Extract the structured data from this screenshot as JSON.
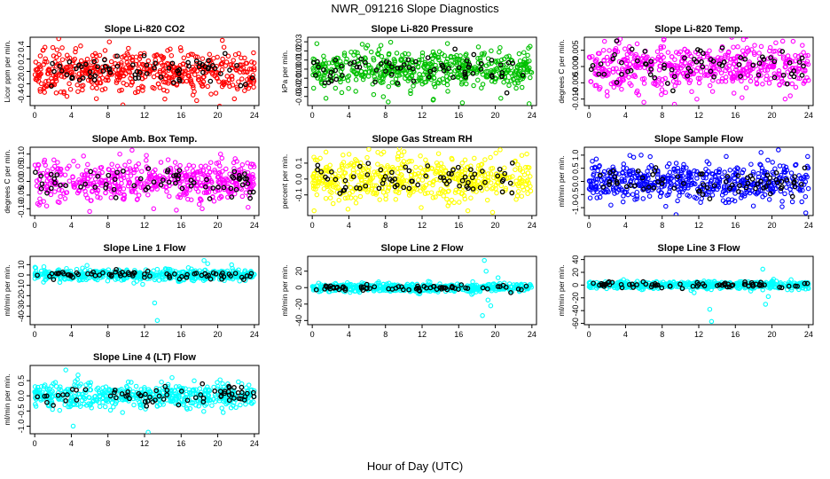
{
  "page": {
    "title": "NWR_091216  Slope Diagnostics",
    "xlabel": "Hour of Day (UTC)"
  },
  "chart_data": [
    {
      "type": "scatter",
      "title": "Slope Li-820 CO2",
      "ylabel": "Licor ppm per min.",
      "ylim": [
        -0.55,
        0.55
      ],
      "yticks": [
        -0.4,
        -0.2,
        0.0,
        0.2,
        0.4
      ],
      "ytick_labels": [
        "-0.4",
        "-0.2",
        "0.0",
        "0.2",
        "0.4"
      ],
      "xlim": [
        -0.5,
        24.5
      ],
      "xticks": [
        0,
        4,
        8,
        12,
        16,
        20,
        24
      ],
      "color": "#ff0000",
      "spread": 0.16,
      "outliers": [
        [
          1.8,
          -0.22
        ],
        [
          3.0,
          0.38
        ],
        [
          9.5,
          -0.3
        ],
        [
          11.7,
          -0.24
        ],
        [
          14.8,
          0.36
        ],
        [
          17.3,
          -0.38
        ],
        [
          17.7,
          -0.47
        ],
        [
          19.8,
          -0.35
        ],
        [
          20.5,
          0.5
        ],
        [
          21.3,
          -0.24
        ]
      ]
    },
    {
      "type": "scatter",
      "title": "Slope Li-820 Pressure",
      "ylabel": "kPa per min.",
      "ylim": [
        -0.04,
        0.035
      ],
      "yticks": [
        -0.03,
        -0.02,
        -0.01,
        0.0,
        0.01,
        0.02,
        0.03
      ],
      "ytick_labels": [
        "-0.03",
        "-0.02",
        "-0.01",
        "0.00",
        "0.01",
        "0.02",
        "0.03"
      ],
      "xlim": [
        -0.5,
        24.5
      ],
      "xticks": [
        0,
        4,
        8,
        12,
        16,
        20,
        24
      ],
      "color": "#00c000",
      "spread": 0.011,
      "outliers": [
        [
          0.5,
          0.028
        ],
        [
          1.5,
          -0.032
        ],
        [
          7.5,
          0.026
        ],
        [
          8.3,
          -0.036
        ],
        [
          13.2,
          -0.034
        ],
        [
          16.4,
          -0.037
        ],
        [
          20.6,
          -0.032
        ],
        [
          23.7,
          -0.038
        ],
        [
          23.8,
          0.025
        ]
      ]
    },
    {
      "type": "scatter",
      "title": "Slope Li-820 Temp.",
      "ylabel": "degrees C per min.",
      "ylim": [
        -0.012,
        0.009
      ],
      "yticks": [
        -0.01,
        -0.005,
        0.0,
        0.005
      ],
      "ytick_labels": [
        "-0.010",
        "-0.005",
        "0.000",
        "0.005"
      ],
      "xlim": [
        -0.5,
        24.5
      ],
      "xticks": [
        0,
        4,
        8,
        12,
        16,
        20,
        24
      ],
      "color": "#ff00ff",
      "spread": 0.0035,
      "outliers": [
        [
          2.0,
          -0.009
        ],
        [
          3.1,
          0.008
        ],
        [
          6.0,
          -0.011
        ],
        [
          8.2,
          0.0085
        ],
        [
          11.8,
          -0.01
        ],
        [
          15.6,
          0.009
        ],
        [
          22.0,
          -0.009
        ]
      ]
    },
    {
      "type": "scatter",
      "title": "Slope Amb. Box Temp.",
      "ylabel": "degrees C per min.",
      "ylim": [
        -0.125,
        0.125
      ],
      "yticks": [
        -0.1,
        -0.05,
        0.0,
        0.05,
        0.1
      ],
      "ytick_labels": [
        "-0.10",
        "-0.05",
        "0.00",
        "0.05",
        "0.10"
      ],
      "xlim": [
        -0.5,
        24.5
      ],
      "xticks": [
        0,
        4,
        8,
        12,
        16,
        20,
        24
      ],
      "color": "#ff00ff",
      "spread": 0.035,
      "outliers": [
        [
          1.3,
          -0.09
        ],
        [
          6.0,
          -0.11
        ],
        [
          9.3,
          0.1
        ],
        [
          12.2,
          0.095
        ],
        [
          13.0,
          -0.1
        ],
        [
          18.3,
          -0.1
        ],
        [
          20.3,
          0.1
        ]
      ]
    },
    {
      "type": "scatter",
      "title": "Slope Gas Stream RH",
      "ylabel": "percent per min.",
      "ylim": [
        -0.23,
        0.2
      ],
      "yticks": [
        -0.1,
        0.0,
        0.1
      ],
      "ytick_labels": [
        "-0.1",
        "0.0",
        "0.1"
      ],
      "xlim": [
        -0.5,
        24.5
      ],
      "xticks": [
        0,
        4,
        8,
        12,
        16,
        20,
        24
      ],
      "color": "#ffff00",
      "spread": 0.07,
      "outliers": [
        [
          0.2,
          -0.2
        ],
        [
          1.5,
          0.17
        ],
        [
          3.9,
          -0.19
        ],
        [
          7.8,
          0.17
        ],
        [
          11.9,
          -0.18
        ],
        [
          13.8,
          0.16
        ],
        [
          17.0,
          -0.2
        ],
        [
          19.7,
          -0.21
        ]
      ]
    },
    {
      "type": "scatter",
      "title": "Slope Sample Flow",
      "ylabel": "ml/min per min.",
      "ylim": [
        -1.3,
        1.3
      ],
      "yticks": [
        -1.0,
        -0.5,
        0.0,
        0.5,
        1.0
      ],
      "ytick_labels": [
        "-1.0",
        "-0.5",
        "0.0",
        "0.5",
        "1.0"
      ],
      "xlim": [
        -0.5,
        24.5
      ],
      "xticks": [
        0,
        4,
        8,
        12,
        16,
        20,
        24
      ],
      "color": "#0000ff",
      "spread": 0.35,
      "outliers": [
        [
          0.8,
          0.85
        ],
        [
          2.4,
          -0.9
        ],
        [
          5.7,
          1.0
        ],
        [
          8.4,
          -0.95
        ],
        [
          12.2,
          -0.8
        ],
        [
          15.0,
          0.95
        ],
        [
          18.8,
          1.1
        ],
        [
          20.7,
          1.2
        ],
        [
          23.7,
          -1.2
        ],
        [
          23.9,
          0.95
        ]
      ]
    },
    {
      "type": "scatter",
      "title": "Slope Line 1 Flow",
      "ylabel": "ml/min per min.",
      "ylim": [
        -48,
        18
      ],
      "yticks": [
        -40,
        -30,
        -20,
        -10,
        0,
        10
      ],
      "ytick_labels": [
        "-40",
        "-30",
        "-20",
        "-10",
        "0",
        "10"
      ],
      "xlim": [
        -0.5,
        24.5
      ],
      "xticks": [
        0,
        4,
        8,
        12,
        16,
        20,
        24
      ],
      "color": "#00ffff",
      "spread": 2.5,
      "outliers": [
        [
          13.1,
          -27
        ],
        [
          13.4,
          -44
        ],
        [
          18.5,
          14
        ],
        [
          18.9,
          11
        ],
        [
          1.0,
          8
        ],
        [
          11.8,
          -9
        ]
      ]
    },
    {
      "type": "scatter",
      "title": "Slope Line 2 Flow",
      "ylabel": "ml/min per min.",
      "ylim": [
        -45,
        38
      ],
      "yticks": [
        -40,
        -20,
        0,
        20
      ],
      "ytick_labels": [
        "-40",
        "-20",
        "0",
        "20"
      ],
      "xlim": [
        -0.5,
        24.5
      ],
      "xticks": [
        0,
        4,
        8,
        12,
        16,
        20,
        24
      ],
      "color": "#00ffff",
      "spread": 2.5,
      "outliers": [
        [
          18.8,
          33
        ],
        [
          19.0,
          20
        ],
        [
          19.2,
          -15
        ],
        [
          19.5,
          -22
        ],
        [
          18.6,
          -34
        ],
        [
          20.3,
          12
        ]
      ]
    },
    {
      "type": "scatter",
      "title": "Slope Line 3 Flow",
      "ylabel": "ml/min per min.",
      "ylim": [
        -62,
        45
      ],
      "yticks": [
        -60,
        -40,
        -20,
        0,
        20,
        40
      ],
      "ytick_labels": [
        "-60",
        "-40",
        "-20",
        "0",
        "20",
        "40"
      ],
      "xlim": [
        -0.5,
        24.5
      ],
      "xticks": [
        0,
        4,
        8,
        12,
        16,
        20,
        24
      ],
      "color": "#00ffff",
      "spread": 3,
      "outliers": [
        [
          13.2,
          -38
        ],
        [
          13.4,
          -57
        ],
        [
          19.0,
          25
        ],
        [
          19.3,
          -30
        ],
        [
          19.6,
          -18
        ],
        [
          11.5,
          -12
        ]
      ]
    },
    {
      "type": "scatter",
      "title": "Slope Line 4 (LT) Flow",
      "ylabel": "ml/min per min.",
      "ylim": [
        -1.25,
        1.0
      ],
      "yticks": [
        -1.0,
        -0.5,
        0.0,
        0.5
      ],
      "ytick_labels": [
        "-1.0",
        "-0.5",
        "0.0",
        "0.5"
      ],
      "xlim": [
        -0.5,
        24.5
      ],
      "xticks": [
        0,
        4,
        8,
        12,
        16,
        20,
        24
      ],
      "color": "#00ffff",
      "spread": 0.2,
      "outliers": [
        [
          3.4,
          0.85
        ],
        [
          4.2,
          -1.0
        ],
        [
          12.4,
          -1.2
        ],
        [
          15.0,
          0.6
        ],
        [
          9.6,
          -0.55
        ]
      ]
    }
  ]
}
